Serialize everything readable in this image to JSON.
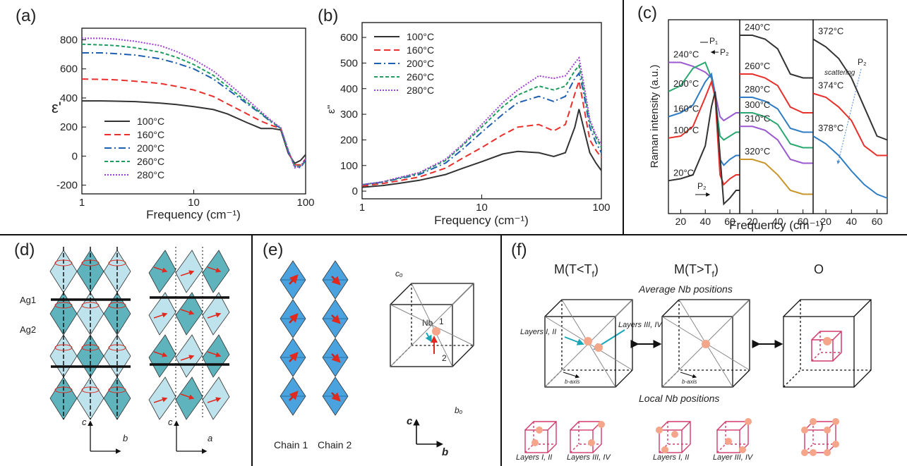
{
  "chart_data": [
    {
      "type": "line",
      "label": "(a)",
      "xlabel": "Frequency (cm⁻¹)",
      "ylabel": "ε'",
      "xscale": "log",
      "x": [
        1,
        1.5,
        2,
        3,
        5,
        7,
        10,
        15,
        20,
        30,
        40,
        50,
        60,
        70,
        80,
        90,
        100
      ],
      "xlim": [
        1,
        100
      ],
      "xticks": [
        1,
        10,
        100
      ],
      "ylim": [
        -260,
        880
      ],
      "yticks": [
        -200,
        0,
        200,
        400,
        600,
        800
      ],
      "legend": "lower left",
      "series": [
        {
          "name": "100°C",
          "color": "#333333",
          "style": "solid",
          "values": [
            380,
            380,
            378,
            375,
            365,
            355,
            340,
            320,
            290,
            230,
            190,
            190,
            180,
            20,
            -50,
            -30,
            10
          ]
        },
        {
          "name": "160°C",
          "color": "#e8302c",
          "style": "dashed",
          "values": [
            530,
            528,
            525,
            515,
            500,
            480,
            455,
            410,
            360,
            290,
            240,
            210,
            190,
            30,
            -60,
            -60,
            -20
          ]
        },
        {
          "name": "200°C",
          "color": "#1f5fb0",
          "style": "dash-dot",
          "values": [
            710,
            710,
            705,
            695,
            670,
            640,
            600,
            530,
            460,
            360,
            290,
            230,
            190,
            30,
            -70,
            -80,
            -30
          ]
        },
        {
          "name": "260°C",
          "color": "#1f9e5e",
          "style": "short-dashed",
          "values": [
            770,
            765,
            760,
            745,
            715,
            680,
            630,
            555,
            480,
            370,
            295,
            235,
            190,
            40,
            -70,
            -70,
            -30
          ]
        },
        {
          "name": "280°C",
          "color": "#a040d0",
          "style": "dotted",
          "values": [
            810,
            810,
            805,
            790,
            760,
            720,
            665,
            585,
            505,
            390,
            305,
            240,
            195,
            40,
            -80,
            -70,
            -20
          ]
        }
      ]
    },
    {
      "type": "line",
      "label": "(b)",
      "xlabel": "Frequency (cm⁻¹)",
      "ylabel": "ε''",
      "xscale": "log",
      "x": [
        1,
        1.5,
        2,
        3,
        5,
        7,
        10,
        15,
        20,
        30,
        40,
        50,
        60,
        65,
        70,
        80,
        90,
        100
      ],
      "xlim": [
        1,
        100
      ],
      "xticks": [
        1,
        10,
        100
      ],
      "ylim": [
        -30,
        658
      ],
      "yticks": [
        0,
        100,
        200,
        300,
        400,
        500,
        600
      ],
      "legend": "upper left",
      "series": [
        {
          "name": "100°C",
          "color": "#333333",
          "style": "solid",
          "values": [
            15,
            22,
            30,
            42,
            65,
            90,
            115,
            145,
            155,
            150,
            135,
            150,
            250,
            320,
            260,
            150,
            110,
            80
          ]
        },
        {
          "name": "160°C",
          "color": "#e8302c",
          "style": "dashed",
          "values": [
            20,
            30,
            40,
            55,
            90,
            130,
            170,
            220,
            250,
            260,
            235,
            260,
            380,
            430,
            350,
            200,
            160,
            130
          ]
        },
        {
          "name": "200°C",
          "color": "#1f5fb0",
          "style": "dash-dot",
          "values": [
            25,
            35,
            48,
            65,
            110,
            165,
            230,
            300,
            345,
            370,
            350,
            370,
            440,
            460,
            400,
            250,
            190,
            150
          ]
        },
        {
          "name": "260°C",
          "color": "#1f9e5e",
          "style": "short-dashed",
          "values": [
            25,
            36,
            50,
            70,
            120,
            180,
            250,
            330,
            375,
            410,
            395,
            410,
            470,
            490,
            420,
            270,
            210,
            170
          ]
        },
        {
          "name": "280°C",
          "color": "#a040d0",
          "style": "dotted",
          "values": [
            25,
            37,
            52,
            72,
            125,
            185,
            260,
            345,
            395,
            450,
            440,
            450,
            500,
            520,
            440,
            280,
            220,
            180
          ]
        }
      ]
    },
    {
      "type": "line",
      "label": "(c)",
      "ylabel": "Raman intensity (a.u.)",
      "annotations": [
        "P₁",
        "P₂",
        "P₂"
      ],
      "x": [
        10,
        20,
        30,
        40,
        45,
        48,
        52,
        55,
        60,
        65,
        68
      ],
      "xlim": [
        10,
        68
      ],
      "xticks": [
        20,
        40,
        60
      ],
      "ylim": [
        0,
        100
      ],
      "legend": "inline",
      "series": [
        {
          "name": "240°C",
          "color": "#9b59d0",
          "style": "solid",
          "values": [
            78,
            78,
            76,
            73,
            70,
            62,
            50,
            48,
            50,
            52,
            52
          ]
        },
        {
          "name": "200°C",
          "color": "#2aa870",
          "style": "solid",
          "values": [
            63,
            66,
            75,
            78,
            70,
            60,
            40,
            38,
            40,
            42,
            42
          ]
        },
        {
          "name": "160°C",
          "color": "#2e7dc4",
          "style": "solid",
          "values": [
            50,
            52,
            56,
            68,
            72,
            62,
            28,
            25,
            28,
            30,
            30
          ]
        },
        {
          "name": "100°C",
          "color": "#e8302c",
          "style": "solid",
          "values": [
            39,
            40,
            45,
            60,
            68,
            60,
            20,
            15,
            18,
            20,
            20
          ]
        },
        {
          "name": "20°C",
          "color": "#333333",
          "style": "solid",
          "values": [
            17,
            18,
            20,
            35,
            55,
            63,
            30,
            5,
            8,
            12,
            12
          ]
        }
      ]
    },
    {
      "type": "line",
      "xlabel": "Frequency (cm⁻¹)",
      "x": [
        10,
        20,
        30,
        40,
        50,
        60,
        68
      ],
      "xlim": [
        10,
        68
      ],
      "xticks": [
        20,
        40,
        60
      ],
      "ylim": [
        0,
        100
      ],
      "legend": "inline",
      "series": [
        {
          "name": "240°C",
          "color": "#333333",
          "style": "solid",
          "values": [
            92,
            92,
            90,
            85,
            72,
            70,
            70
          ]
        },
        {
          "name": "260°C",
          "color": "#e8302c",
          "style": "solid",
          "values": [
            72,
            72,
            70,
            66,
            55,
            52,
            52
          ]
        },
        {
          "name": "280°C",
          "color": "#2e7dc4",
          "style": "solid",
          "values": [
            60,
            60,
            58,
            54,
            44,
            42,
            42
          ]
        },
        {
          "name": "300°C",
          "color": "#2aa870",
          "style": "solid",
          "values": [
            52,
            52,
            50,
            46,
            36,
            34,
            34
          ]
        },
        {
          "name": "310°C",
          "color": "#9b59d0",
          "style": "solid",
          "values": [
            45,
            45,
            43,
            38,
            28,
            26,
            26
          ]
        },
        {
          "name": "320°C",
          "color": "#c8962a",
          "style": "solid",
          "values": [
            28,
            28,
            26,
            20,
            12,
            10,
            10
          ]
        }
      ]
    },
    {
      "type": "line",
      "annotations": [
        "P₂",
        "scattering"
      ],
      "x": [
        10,
        20,
        30,
        40,
        50,
        60,
        68
      ],
      "xlim": [
        10,
        68
      ],
      "xticks": [
        20,
        40,
        60
      ],
      "ylim": [
        0,
        100
      ],
      "legend": "inline",
      "series": [
        {
          "name": "372°C",
          "color": "#333333",
          "style": "solid",
          "values": [
            90,
            86,
            80,
            70,
            55,
            40,
            38
          ]
        },
        {
          "name": "374°C",
          "color": "#e8302c",
          "style": "solid",
          "values": [
            62,
            60,
            55,
            48,
            35,
            30,
            30
          ]
        },
        {
          "name": "378°C",
          "color": "#2e7dc4",
          "style": "solid",
          "values": [
            40,
            36,
            30,
            22,
            15,
            10,
            8
          ]
        }
      ]
    }
  ],
  "panels": {
    "d": {
      "label": "(d)",
      "sites": [
        "Ag1",
        "Ag2"
      ],
      "axes": [
        "c",
        "b",
        "c",
        "a"
      ]
    },
    "e": {
      "label": "(e)",
      "chains": [
        "Chain 1",
        "Chain 2"
      ],
      "cube": [
        "cₒ",
        "Nb",
        "1",
        "2",
        "bₒ"
      ],
      "axes": [
        "c",
        "b"
      ]
    },
    "f": {
      "label": "(f)",
      "phases": [
        {
          "name": "M(T<T",
          "sub": "f",
          "close": ")"
        },
        {
          "name": "M(T>T",
          "sub": "f",
          "close": ")"
        },
        {
          "name": "O"
        }
      ],
      "average": "Average Nb positions",
      "local": "Local Nb positions",
      "cube_labels": [
        "Layers I, II",
        "Layers III, IV"
      ],
      "axis": [
        "b-axis",
        "b-axis"
      ],
      "local_labels": [
        "Layers I, II",
        "Layers III, IV",
        "Layers I, II",
        "Layer III, IV"
      ]
    }
  }
}
